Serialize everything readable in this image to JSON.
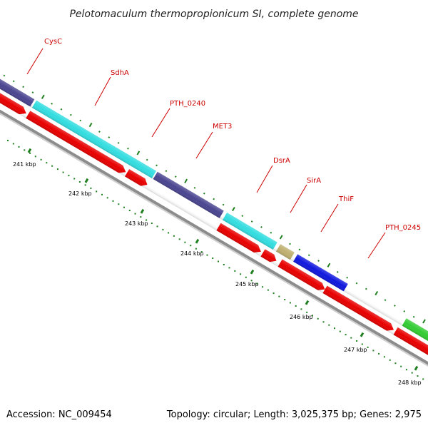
{
  "title": "Pelotomaculum thermopropionicum SI, complete genome",
  "footer": {
    "accession": "Accession: NC_009454",
    "summary": "Topology: circular; Length: 3,025,375 bp; Genes: 2,975"
  },
  "colors": {
    "reverse_strand": "#e80000",
    "backbone": "#909090",
    "label_red": "#cc0000",
    "tick_green": "#208020"
  },
  "gene_labels": [
    "CysC",
    "SdhA",
    "PTH_0240",
    "MET3",
    "DsrA",
    "SirA",
    "ThiF",
    "PTH_0245"
  ],
  "forward_genes": [
    {
      "label": "CysC",
      "color": "#4a4590"
    },
    {
      "label": "SdhA",
      "color": "#33dde0"
    },
    {
      "label": "PTH_0240",
      "color": "#4a4590"
    },
    {
      "label": "MET3",
      "color": "#33dde0"
    },
    {
      "label": "DsrA",
      "color": "#bfb070"
    },
    {
      "label": "SirA",
      "color": "#1018dd"
    },
    {
      "label": "PTH_0245",
      "color": "#33cc33"
    }
  ],
  "kbp_labels": [
    "241 kbp",
    "242 kbp",
    "243 kbp",
    "244 kbp",
    "245 kbp",
    "246 kbp",
    "247 kbp",
    "248 kbp"
  ]
}
